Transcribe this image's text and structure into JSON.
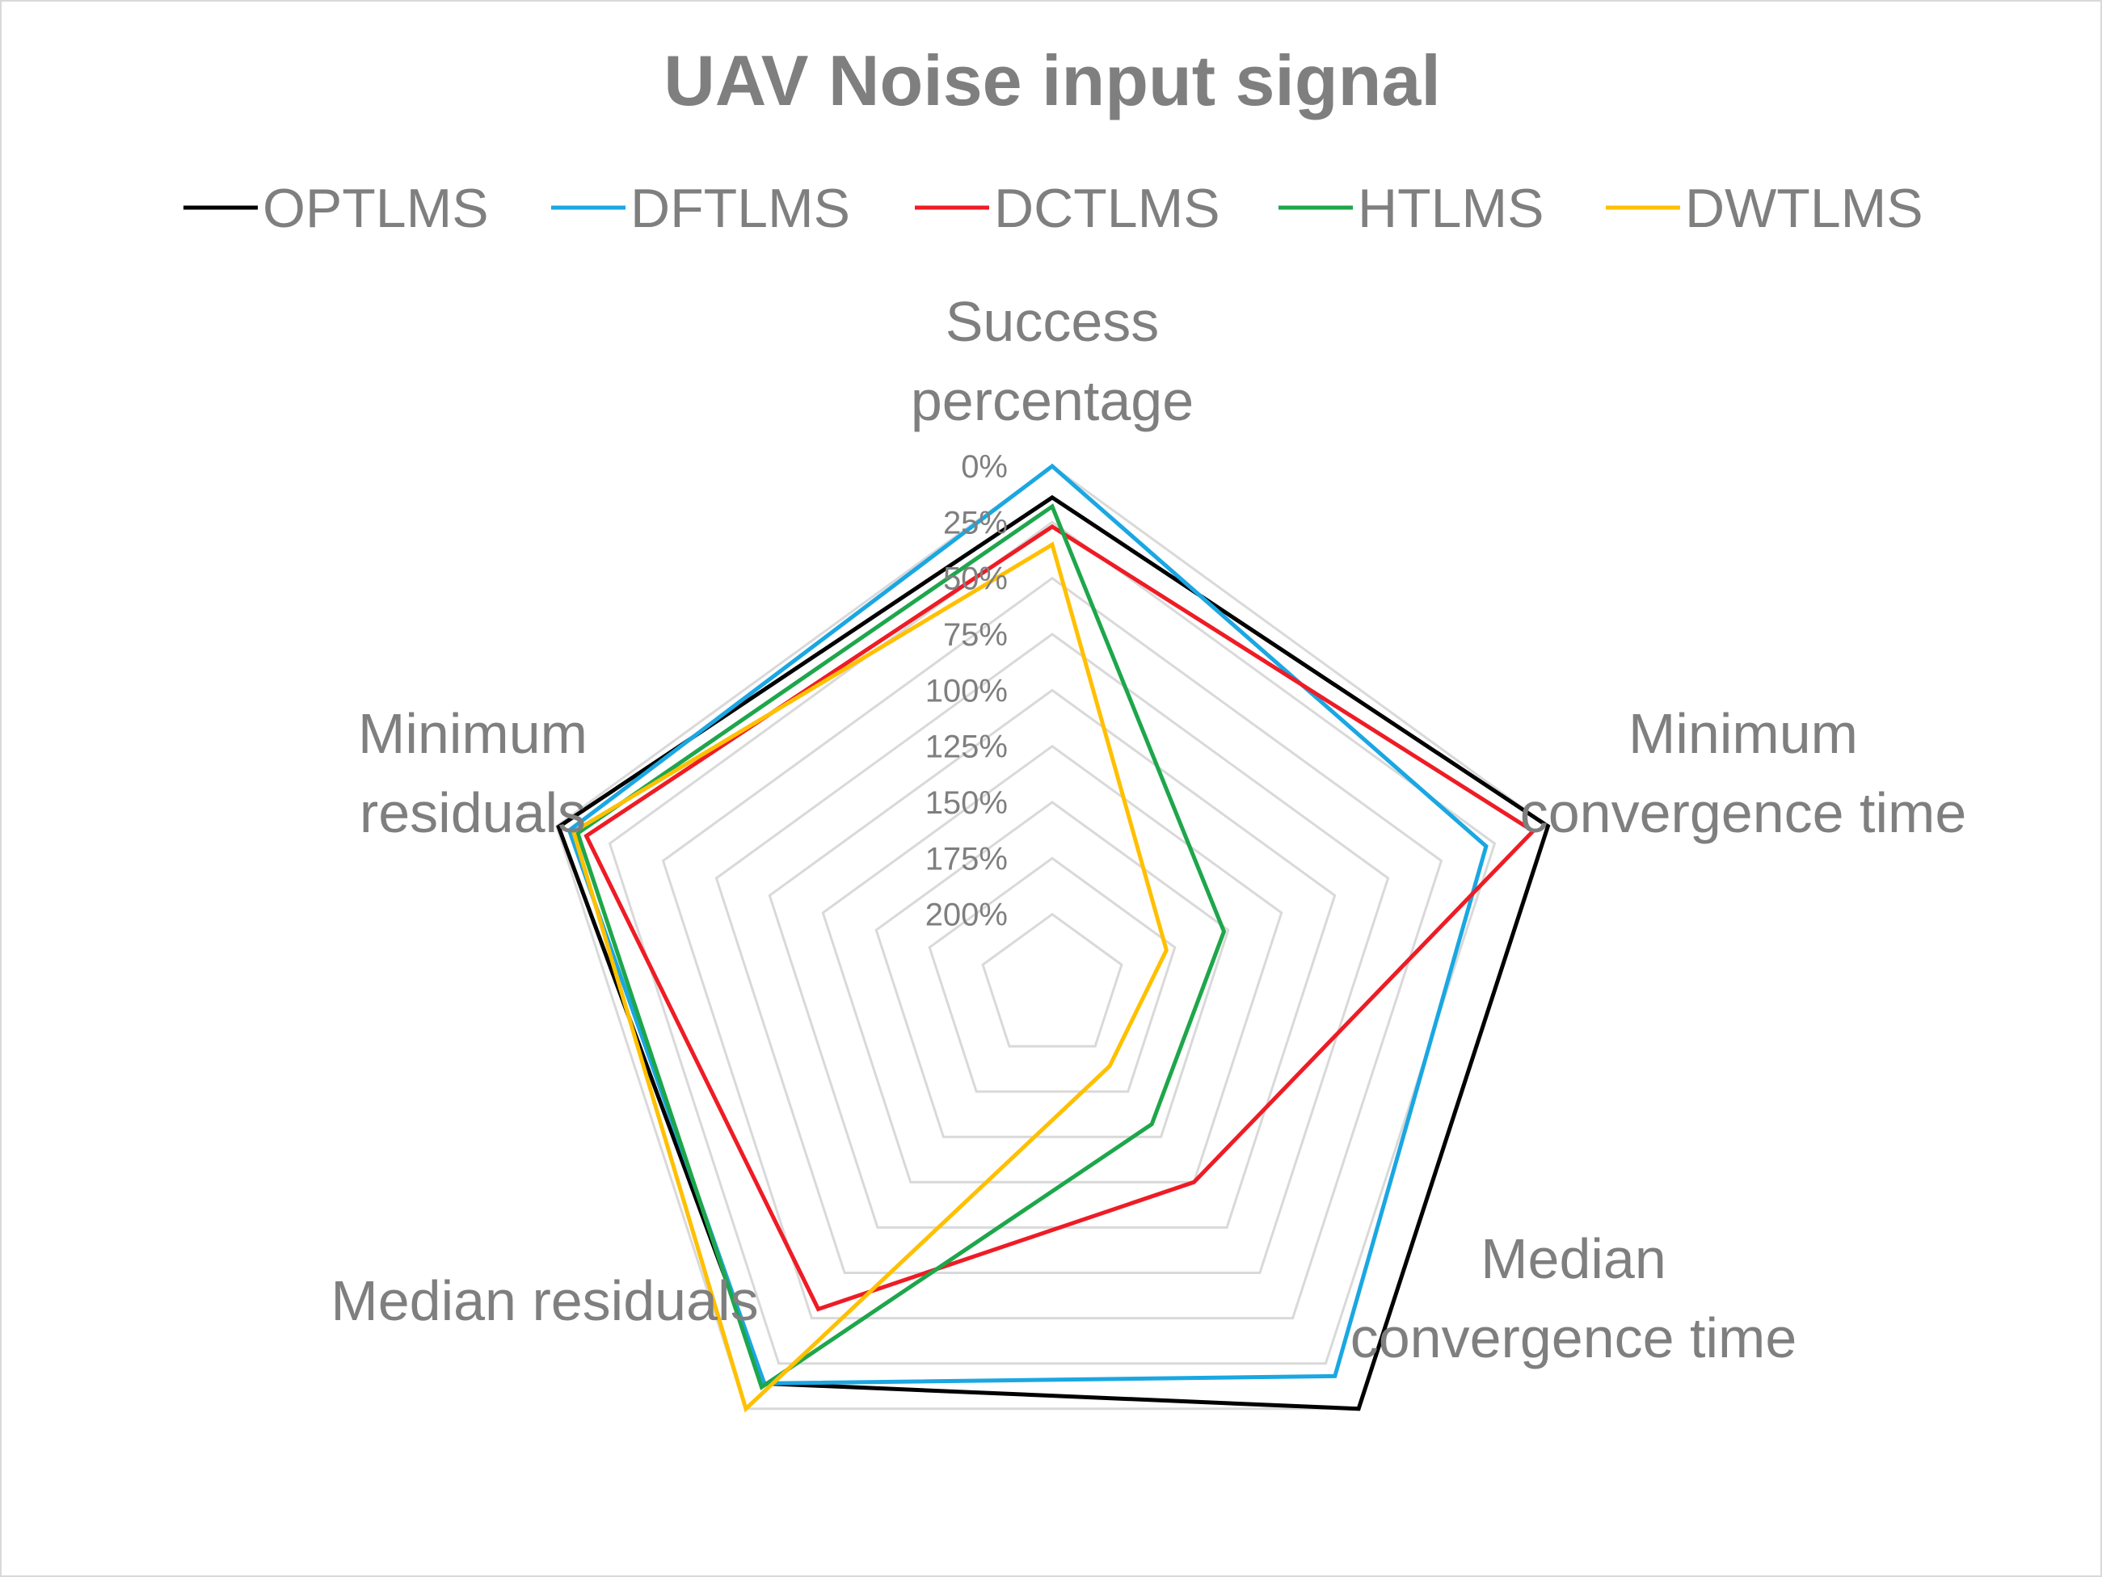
{
  "chart_data": {
    "type": "radar",
    "title": "UAV Noise input signal",
    "axes": [
      [
        "Success",
        "percentage"
      ],
      [
        "Minimum",
        "convergence time"
      ],
      [
        "Median",
        "convergence time"
      ],
      [
        "Median residuals"
      ],
      [
        "Minimum",
        "residuals"
      ]
    ],
    "radial_axis": {
      "ticks": [
        "0%",
        "25%",
        "50%",
        "75%",
        "100%",
        "125%",
        "150%",
        "175%",
        "200%"
      ],
      "min": 0,
      "max": 200,
      "reversed": true,
      "unit": "%"
    },
    "legend_position": "top",
    "series": [
      {
        "name": "OPTLMS",
        "color": "#000000",
        "values": [
          14,
          0,
          0,
          14,
          1
        ]
      },
      {
        "name": "DFTLMS",
        "color": "#1aa7e2",
        "values": [
          0,
          29,
          18,
          14,
          6
        ]
      },
      {
        "name": "DCTLMS",
        "color": "#ee1c25",
        "values": [
          27,
          7,
          125,
          55,
          14
        ]
      },
      {
        "name": "HTLMS",
        "color": "#1ea64b",
        "values": [
          18,
          152,
          157,
          12,
          10
        ]
      },
      {
        "name": "DWTLMS",
        "color": "#ffc000",
        "values": [
          35,
          179,
          189,
          0,
          8
        ]
      }
    ]
  }
}
